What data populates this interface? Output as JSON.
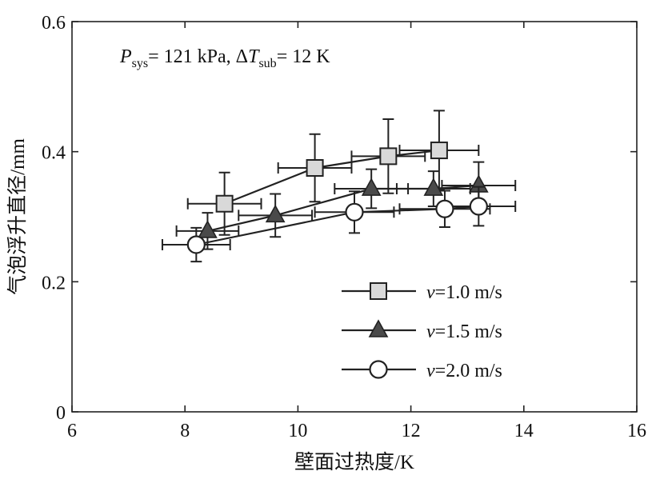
{
  "chart_data": {
    "type": "scatter",
    "xlabel": "壁面过热度/K",
    "ylabel": "气泡浮升直径/mm",
    "xlim": [
      6,
      16
    ],
    "ylim": [
      0,
      0.6
    ],
    "x_ticks": [
      "6",
      "8",
      "10",
      "12",
      "14",
      "16"
    ],
    "y_ticks": [
      "0",
      "0.2",
      "0.4",
      "0.6"
    ],
    "x_tick_values": [
      6,
      8,
      10,
      12,
      14,
      16
    ],
    "y_tick_values": [
      0,
      0.2,
      0.4,
      0.6
    ],
    "annotation": {
      "p_symbol": "P",
      "p_sub": "sys",
      "p_value": "= 121 kPa, Δ",
      "t_symbol": "T",
      "t_sub": "sub",
      "t_value": "= 12 K"
    },
    "legend_position": "lower-right",
    "series": [
      {
        "name": "v=1.0 m/s",
        "legend_prefix": "v",
        "legend_suffix": "=1.0 m/s",
        "marker": "square",
        "fill": "#d9d9d9",
        "points": [
          {
            "x": 8.7,
            "y": 0.32,
            "xerr": 0.65,
            "yerr": 0.048
          },
          {
            "x": 10.3,
            "y": 0.375,
            "xerr": 0.65,
            "yerr": 0.052
          },
          {
            "x": 11.6,
            "y": 0.393,
            "xerr": 0.65,
            "yerr": 0.057
          },
          {
            "x": 12.5,
            "y": 0.402,
            "xerr": 0.7,
            "yerr": 0.061
          }
        ]
      },
      {
        "name": "v=1.5 m/s",
        "legend_prefix": "v",
        "legend_suffix": "=1.5 m/s",
        "marker": "triangle",
        "fill": "#4a4a4a",
        "points": [
          {
            "x": 8.4,
            "y": 0.278,
            "xerr": 0.55,
            "yerr": 0.028
          },
          {
            "x": 9.6,
            "y": 0.302,
            "xerr": 0.65,
            "yerr": 0.033
          },
          {
            "x": 11.3,
            "y": 0.343,
            "xerr": 0.65,
            "yerr": 0.03
          },
          {
            "x": 12.4,
            "y": 0.343,
            "xerr": 0.65,
            "yerr": 0.027
          },
          {
            "x": 13.2,
            "y": 0.348,
            "xerr": 0.65,
            "yerr": 0.036
          }
        ]
      },
      {
        "name": "v=2.0 m/s",
        "legend_prefix": "v",
        "legend_suffix": "=2.0 m/s",
        "marker": "circle",
        "fill": "#ffffff",
        "points": [
          {
            "x": 8.2,
            "y": 0.257,
            "xerr": 0.6,
            "yerr": 0.026
          },
          {
            "x": 11.0,
            "y": 0.307,
            "xerr": 0.7,
            "yerr": 0.032
          },
          {
            "x": 12.6,
            "y": 0.312,
            "xerr": 0.8,
            "yerr": 0.028
          },
          {
            "x": 13.2,
            "y": 0.316,
            "xerr": 0.65,
            "yerr": 0.03
          }
        ]
      }
    ]
  }
}
